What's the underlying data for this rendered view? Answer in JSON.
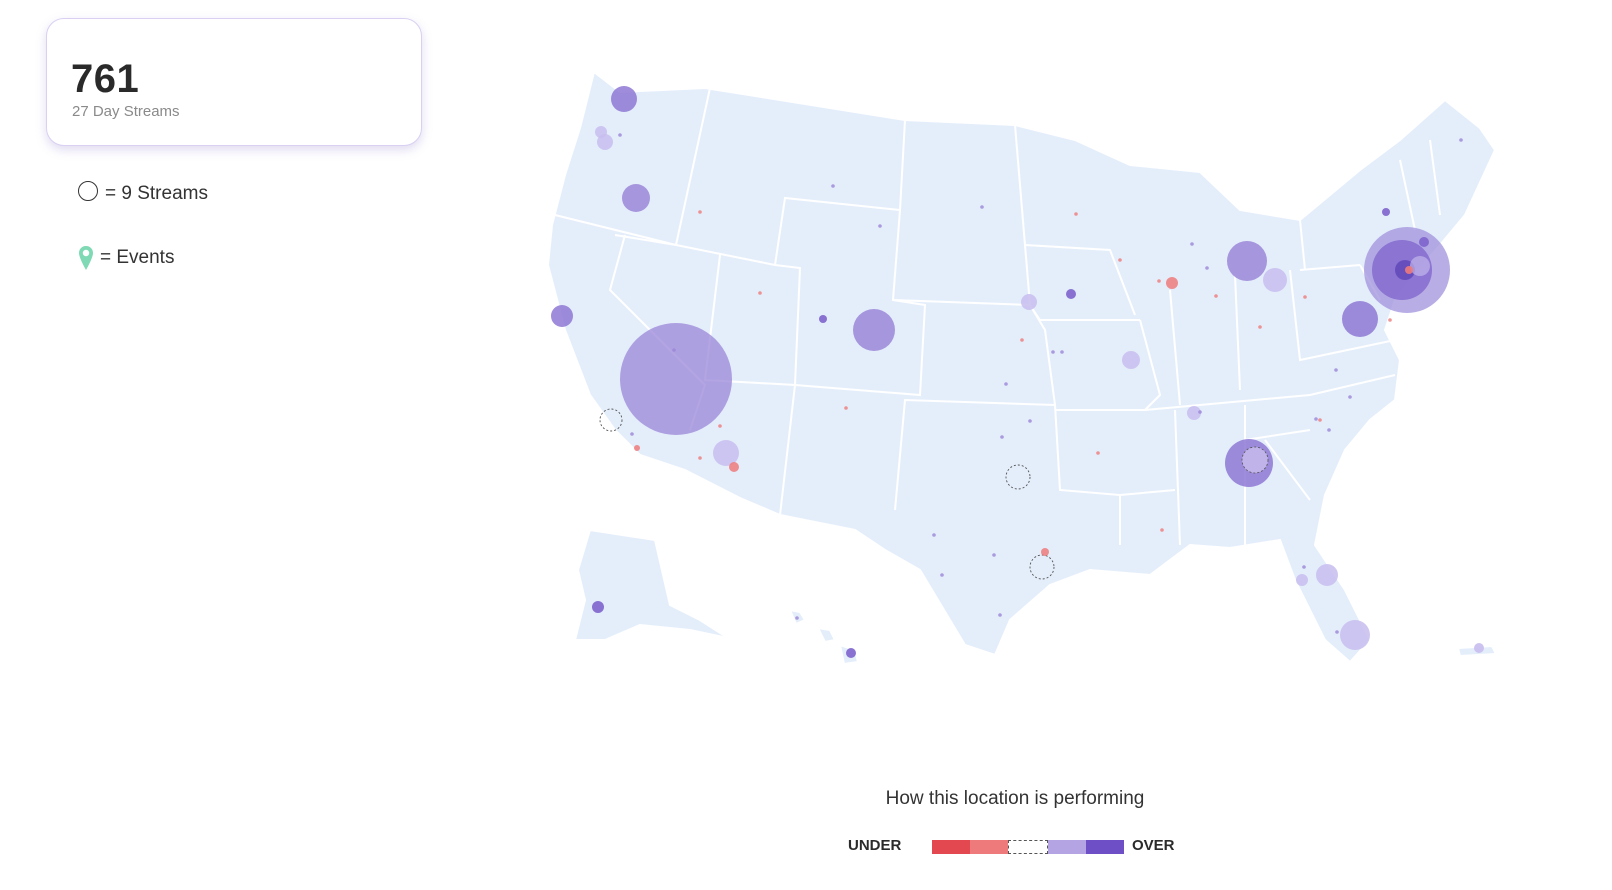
{
  "stat": {
    "value": "761",
    "label": "27 Day Streams"
  },
  "legend": {
    "circle_label": "= 9 Streams",
    "events_label": "= Events",
    "circle_icon": "circle-outline-icon",
    "events_icon": "map-pin-icon",
    "pin_color": "#7fd9b4"
  },
  "performance": {
    "title": "How this location is performing",
    "under_label": "UNDER",
    "over_label": "OVER",
    "scale_colors": [
      "#e3474f",
      "#ee7a7b",
      "#ffffff",
      "#b5a4e4",
      "#6f4fc6"
    ]
  },
  "map": {
    "land_color": "#e4eefb",
    "border_color": "#ffffff",
    "bubbles": [
      {
        "location": "Seattle",
        "streams": 9,
        "level": "over"
      },
      {
        "location": "Portland",
        "streams": 4,
        "level": "light-over"
      },
      {
        "location": "Boise area",
        "streams": 9,
        "level": "over"
      },
      {
        "location": "San Francisco",
        "streams": 6,
        "level": "over"
      },
      {
        "location": "Las Vegas",
        "streams": 170,
        "level": "light-over"
      },
      {
        "location": "Los Angeles",
        "streams": 3,
        "level": "average"
      },
      {
        "location": "Phoenix",
        "streams": 7,
        "level": "light-over"
      },
      {
        "location": "Denver",
        "streams": 22,
        "level": "over"
      },
      {
        "location": "Minneapolis",
        "streams": 1,
        "level": "light-over"
      },
      {
        "location": "Chicago",
        "streams": 1,
        "level": "light-under"
      },
      {
        "location": "Detroit",
        "streams": 20,
        "level": "over"
      },
      {
        "location": "Cleveland",
        "streams": 6,
        "level": "light-over"
      },
      {
        "location": "St. Louis",
        "streams": 4,
        "level": "light-over"
      },
      {
        "location": "Dallas",
        "streams": 5,
        "level": "average"
      },
      {
        "location": "Houston",
        "streams": 5,
        "level": "average"
      },
      {
        "location": "Nashville",
        "streams": 2,
        "level": "light-over"
      },
      {
        "location": "Atlanta",
        "streams": 28,
        "level": "over"
      },
      {
        "location": "Washington DC",
        "streams": 15,
        "level": "over"
      },
      {
        "location": "New York",
        "streams": 90,
        "level": "light-over"
      },
      {
        "location": "Tampa",
        "streams": 6,
        "level": "light-over"
      },
      {
        "location": "Miami",
        "streams": 10,
        "level": "light-over"
      },
      {
        "location": "Anchorage",
        "streams": 1,
        "level": "over"
      },
      {
        "location": "Honolulu",
        "streams": 1,
        "level": "over"
      }
    ]
  }
}
